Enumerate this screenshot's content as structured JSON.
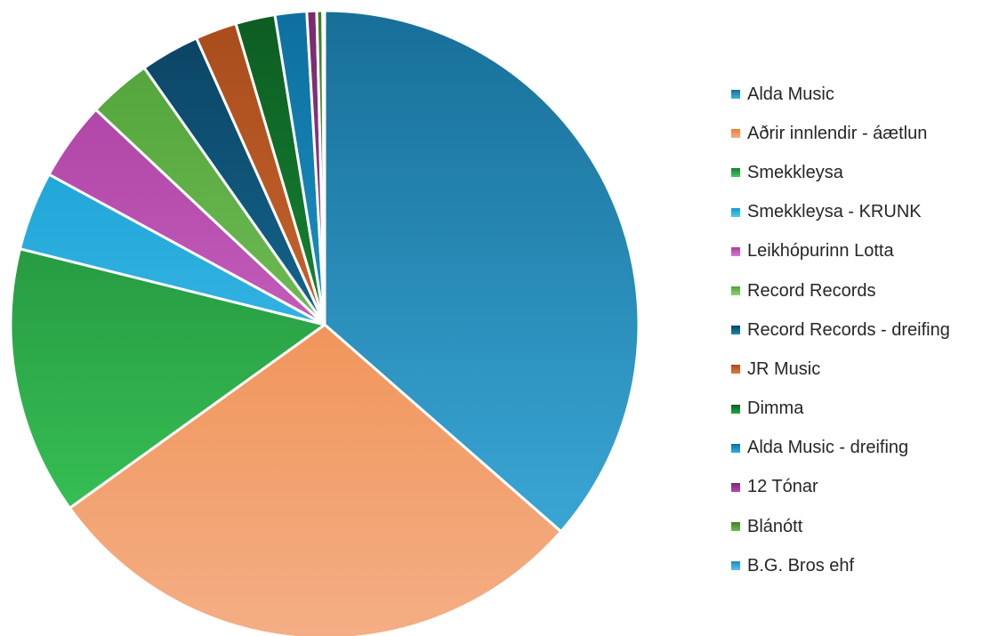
{
  "chart_data": {
    "type": "pie",
    "title": "",
    "legend_position": "right",
    "start_angle_deg": 0,
    "direction": "clockwise",
    "slices": [
      {
        "label": "Alda Music",
        "value": 35.9,
        "color": "#2A91C2",
        "light": "#41B1E1",
        "dark": "#176F98"
      },
      {
        "label": "Aðrir innlendir - áætlun",
        "value": 28.2,
        "color": "#F09A5F",
        "light": "#F4AE85",
        "dark": "#ED7D31"
      },
      {
        "label": "Smekkleysa",
        "value": 13.6,
        "color": "#27A844",
        "light": "#3DCF5C",
        "dark": "#1A7C33"
      },
      {
        "label": "Smekkleysa - KRUNK",
        "value": 4.0,
        "color": "#2FB8E6",
        "light": "#56C8F2",
        "dark": "#0E9BD0"
      },
      {
        "label": "Leikhópurinn Lotta",
        "value": 4.0,
        "color": "#C556BD",
        "light": "#DA79D2",
        "dark": "#A93D9F"
      },
      {
        "label": "Record Records",
        "value": 3.2,
        "color": "#6EC052",
        "light": "#8ED26E",
        "dark": "#4EA138"
      },
      {
        "label": "Record Records - dreifing",
        "value": 3.0,
        "color": "#13638C",
        "light": "#1C86B8",
        "dark": "#0B4261"
      },
      {
        "label": "JR Music",
        "value": 2.1,
        "color": "#D1662E",
        "light": "#E07A3E",
        "dark": "#A84C1C"
      },
      {
        "label": "Dimma",
        "value": 2.0,
        "color": "#168A33",
        "light": "#1DAB42",
        "dark": "#0D5C22"
      },
      {
        "label": "Alda Music - dreifing",
        "value": 1.6,
        "color": "#1A93C9",
        "light": "#2AB1E4",
        "dark": "#0D6F9F"
      },
      {
        "label": "12 Tónar",
        "value": 0.5,
        "color": "#9A3B8F",
        "light": "#B44CA8",
        "dark": "#7A2A70"
      },
      {
        "label": "Blánótt",
        "value": 0.3,
        "color": "#5AA33D",
        "light": "#6FBF4C",
        "dark": "#3F7E2A"
      },
      {
        "label": "B.G. Bros ehf",
        "value": 0.1,
        "color": "#3AA7DC",
        "light": "#5BC0EC",
        "dark": "#2388BC"
      }
    ]
  }
}
